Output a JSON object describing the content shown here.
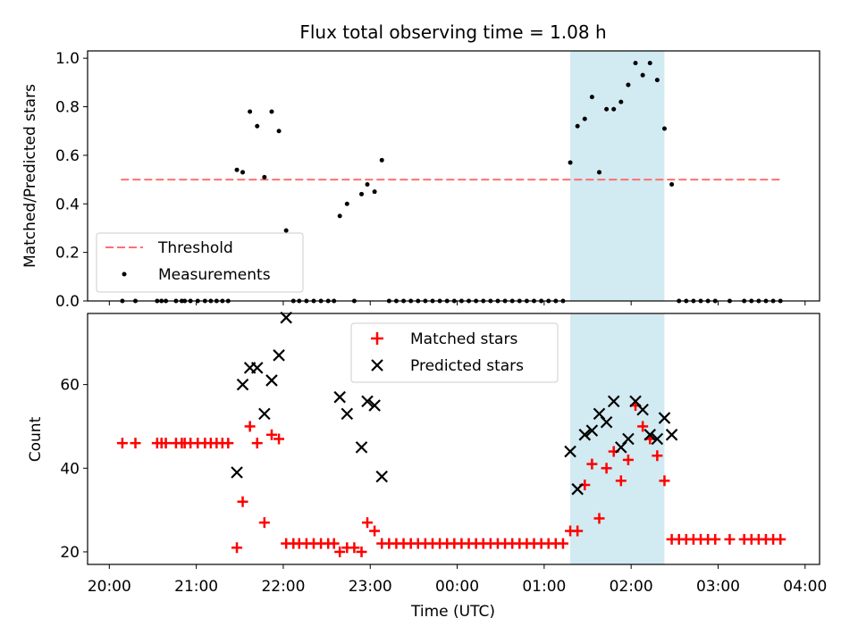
{
  "chart_data": [
    {
      "type": "scatter",
      "panel": "top",
      "title": "Flux total observing time = 1.08 h",
      "xlabel": "",
      "ylabel": "Matched/Predicted stars",
      "xlim": [
        "20:00",
        "04:00"
      ],
      "ylim": [
        0,
        1.03
      ],
      "yticks": [
        "0.0",
        "0.2",
        "0.4",
        "0.6",
        "0.8",
        "1.0"
      ],
      "legend": {
        "placement": "lower-left",
        "entries": [
          "Threshold",
          "Measurements"
        ]
      },
      "threshold": {
        "name": "Threshold",
        "value": 0.5,
        "x_range": [
          "20:08",
          "03:43"
        ],
        "color": "#ff7070",
        "style": "dashed"
      },
      "highlight": {
        "x_range": [
          "01:18",
          "02:23"
        ],
        "color": "#add8e6"
      },
      "series": [
        {
          "name": "Measurements",
          "marker": "dot",
          "color": "#000000",
          "points": [
            [
              "20:09",
              0
            ],
            [
              "20:18",
              0
            ],
            [
              "20:33",
              0
            ],
            [
              "20:36",
              0
            ],
            [
              "20:39",
              0
            ],
            [
              "20:46",
              0
            ],
            [
              "20:50",
              0
            ],
            [
              "20:52",
              0
            ],
            [
              "20:56",
              0
            ],
            [
              "21:01",
              0
            ],
            [
              "21:06",
              0
            ],
            [
              "21:10",
              0
            ],
            [
              "21:14",
              0
            ],
            [
              "21:18",
              0
            ],
            [
              "21:22",
              0
            ],
            [
              "21:28",
              0.54
            ],
            [
              "21:32",
              0.53
            ],
            [
              "21:37",
              0.78
            ],
            [
              "21:42",
              0.72
            ],
            [
              "21:47",
              0.51
            ],
            [
              "21:52",
              0.78
            ],
            [
              "21:57",
              0.7
            ],
            [
              "22:02",
              0.29
            ],
            [
              "22:07",
              0
            ],
            [
              "22:11",
              0
            ],
            [
              "22:16",
              0
            ],
            [
              "22:21",
              0
            ],
            [
              "22:26",
              0
            ],
            [
              "22:31",
              0
            ],
            [
              "22:35",
              0
            ],
            [
              "22:39",
              0.35
            ],
            [
              "22:44",
              0.4
            ],
            [
              "22:49",
              0
            ],
            [
              "22:54",
              0.44
            ],
            [
              "22:58",
              0.48
            ],
            [
              "23:03",
              0.45
            ],
            [
              "23:08",
              0.58
            ],
            [
              "23:13",
              0
            ],
            [
              "23:18",
              0
            ],
            [
              "23:23",
              0
            ],
            [
              "23:28",
              0
            ],
            [
              "23:33",
              0
            ],
            [
              "23:38",
              0
            ],
            [
              "23:43",
              0
            ],
            [
              "23:48",
              0
            ],
            [
              "23:53",
              0
            ],
            [
              "23:58",
              0
            ],
            [
              "00:03",
              0
            ],
            [
              "00:08",
              0
            ],
            [
              "00:13",
              0
            ],
            [
              "00:18",
              0
            ],
            [
              "00:23",
              0
            ],
            [
              "00:28",
              0
            ],
            [
              "00:33",
              0
            ],
            [
              "00:38",
              0
            ],
            [
              "00:43",
              0
            ],
            [
              "00:48",
              0
            ],
            [
              "00:53",
              0
            ],
            [
              "00:58",
              0
            ],
            [
              "01:03",
              0
            ],
            [
              "01:08",
              0
            ],
            [
              "01:13",
              0
            ],
            [
              "01:18",
              0.57
            ],
            [
              "01:23",
              0.72
            ],
            [
              "01:28",
              0.75
            ],
            [
              "01:33",
              0.84
            ],
            [
              "01:38",
              0.53
            ],
            [
              "01:43",
              0.79
            ],
            [
              "01:48",
              0.79
            ],
            [
              "01:53",
              0.82
            ],
            [
              "01:58",
              0.89
            ],
            [
              "02:03",
              0.98
            ],
            [
              "02:08",
              0.93
            ],
            [
              "02:13",
              0.98
            ],
            [
              "02:18",
              0.91
            ],
            [
              "02:23",
              0.71
            ],
            [
              "02:28",
              0.48
            ],
            [
              "02:33",
              0
            ],
            [
              "02:38",
              0
            ],
            [
              "02:43",
              0
            ],
            [
              "02:48",
              0
            ],
            [
              "02:53",
              0
            ],
            [
              "02:58",
              0
            ],
            [
              "03:08",
              0
            ],
            [
              "03:18",
              0
            ],
            [
              "03:23",
              0
            ],
            [
              "03:28",
              0
            ],
            [
              "03:33",
              0
            ],
            [
              "03:38",
              0
            ],
            [
              "03:43",
              0
            ]
          ]
        }
      ]
    },
    {
      "type": "scatter",
      "panel": "bottom",
      "xlabel": "Time (UTC)",
      "ylabel": "Count",
      "xlim": [
        "20:00",
        "04:00"
      ],
      "xticks": [
        "20:00",
        "21:00",
        "22:00",
        "23:00",
        "00:00",
        "01:00",
        "02:00",
        "03:00",
        "04:00"
      ],
      "ylim": [
        17,
        77
      ],
      "yticks": [
        "20",
        "40",
        "60"
      ],
      "legend": {
        "placement": "upper-center",
        "entries": [
          "Matched stars",
          "Predicted stars"
        ]
      },
      "highlight": {
        "x_range": [
          "01:18",
          "02:23"
        ],
        "color": "#add8e6"
      },
      "series": [
        {
          "name": "Matched stars",
          "marker": "plus",
          "color": "#ff0000",
          "points": [
            [
              "20:09",
              46
            ],
            [
              "20:18",
              46
            ],
            [
              "20:33",
              46
            ],
            [
              "20:36",
              46
            ],
            [
              "20:39",
              46
            ],
            [
              "20:46",
              46
            ],
            [
              "20:50",
              46
            ],
            [
              "20:52",
              46
            ],
            [
              "20:56",
              46
            ],
            [
              "21:01",
              46
            ],
            [
              "21:06",
              46
            ],
            [
              "21:10",
              46
            ],
            [
              "21:14",
              46
            ],
            [
              "21:18",
              46
            ],
            [
              "21:22",
              46
            ],
            [
              "21:28",
              21
            ],
            [
              "21:32",
              32
            ],
            [
              "21:37",
              50
            ],
            [
              "21:42",
              46
            ],
            [
              "21:47",
              27
            ],
            [
              "21:52",
              48
            ],
            [
              "21:57",
              47
            ],
            [
              "22:02",
              22
            ],
            [
              "22:07",
              22
            ],
            [
              "22:11",
              22
            ],
            [
              "22:16",
              22
            ],
            [
              "22:21",
              22
            ],
            [
              "22:26",
              22
            ],
            [
              "22:31",
              22
            ],
            [
              "22:35",
              22
            ],
            [
              "22:39",
              20
            ],
            [
              "22:44",
              21
            ],
            [
              "22:49",
              21
            ],
            [
              "22:54",
              20
            ],
            [
              "22:58",
              27
            ],
            [
              "23:03",
              25
            ],
            [
              "23:08",
              22
            ],
            [
              "23:13",
              22
            ],
            [
              "23:18",
              22
            ],
            [
              "23:23",
              22
            ],
            [
              "23:28",
              22
            ],
            [
              "23:33",
              22
            ],
            [
              "23:38",
              22
            ],
            [
              "23:43",
              22
            ],
            [
              "23:48",
              22
            ],
            [
              "23:53",
              22
            ],
            [
              "23:58",
              22
            ],
            [
              "00:03",
              22
            ],
            [
              "00:08",
              22
            ],
            [
              "00:13",
              22
            ],
            [
              "00:18",
              22
            ],
            [
              "00:23",
              22
            ],
            [
              "00:28",
              22
            ],
            [
              "00:33",
              22
            ],
            [
              "00:38",
              22
            ],
            [
              "00:43",
              22
            ],
            [
              "00:48",
              22
            ],
            [
              "00:53",
              22
            ],
            [
              "00:58",
              22
            ],
            [
              "01:03",
              22
            ],
            [
              "01:08",
              22
            ],
            [
              "01:13",
              22
            ],
            [
              "01:18",
              25
            ],
            [
              "01:23",
              25
            ],
            [
              "01:28",
              36
            ],
            [
              "01:33",
              41
            ],
            [
              "01:38",
              28
            ],
            [
              "01:43",
              40
            ],
            [
              "01:48",
              44
            ],
            [
              "01:53",
              37
            ],
            [
              "01:58",
              42
            ],
            [
              "02:03",
              55
            ],
            [
              "02:08",
              50
            ],
            [
              "02:13",
              47
            ],
            [
              "02:18",
              43
            ],
            [
              "02:23",
              37
            ],
            [
              "02:28",
              23
            ],
            [
              "02:33",
              23
            ],
            [
              "02:38",
              23
            ],
            [
              "02:43",
              23
            ],
            [
              "02:48",
              23
            ],
            [
              "02:53",
              23
            ],
            [
              "02:58",
              23
            ],
            [
              "03:08",
              23
            ],
            [
              "03:18",
              23
            ],
            [
              "03:23",
              23
            ],
            [
              "03:28",
              23
            ],
            [
              "03:33",
              23
            ],
            [
              "03:38",
              23
            ],
            [
              "03:43",
              23
            ]
          ]
        },
        {
          "name": "Predicted stars",
          "marker": "x",
          "color": "#000000",
          "points": [
            [
              "21:28",
              39
            ],
            [
              "21:32",
              60
            ],
            [
              "21:37",
              64
            ],
            [
              "21:42",
              64
            ],
            [
              "21:47",
              53
            ],
            [
              "21:52",
              61
            ],
            [
              "21:57",
              67
            ],
            [
              "22:02",
              76
            ],
            [
              "22:39",
              57
            ],
            [
              "22:44",
              53
            ],
            [
              "22:54",
              45
            ],
            [
              "22:58",
              56
            ],
            [
              "23:03",
              55
            ],
            [
              "23:08",
              38
            ],
            [
              "01:18",
              44
            ],
            [
              "01:23",
              35
            ],
            [
              "01:28",
              48
            ],
            [
              "01:33",
              49
            ],
            [
              "01:38",
              53
            ],
            [
              "01:43",
              51
            ],
            [
              "01:48",
              56
            ],
            [
              "01:53",
              45
            ],
            [
              "01:58",
              47
            ],
            [
              "02:03",
              56
            ],
            [
              "02:08",
              54
            ],
            [
              "02:13",
              48
            ],
            [
              "02:18",
              47
            ],
            [
              "02:23",
              52
            ],
            [
              "02:28",
              48
            ]
          ]
        }
      ]
    }
  ]
}
